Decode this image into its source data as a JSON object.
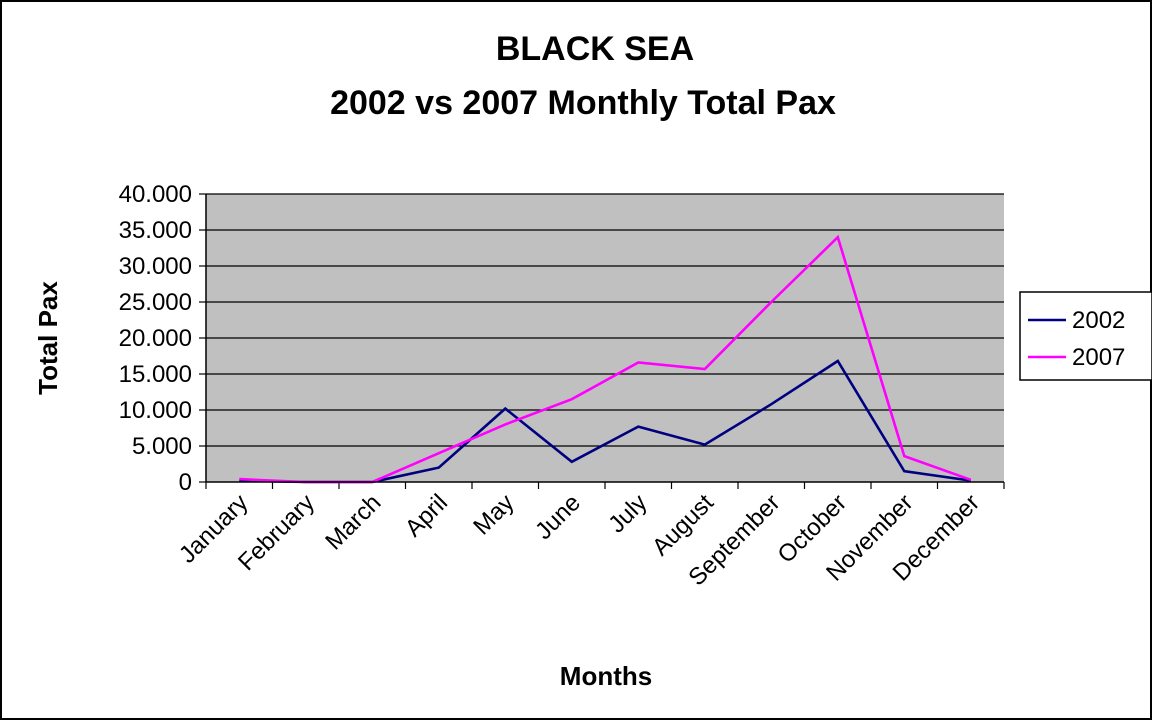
{
  "chart_data": {
    "type": "line",
    "title": "BLACK SEA",
    "subtitle": "2002 vs 2007 Monthly Total Pax",
    "xlabel": "Months",
    "ylabel": "Total Pax",
    "categories": [
      "January",
      "February",
      "March",
      "April",
      "May",
      "June",
      "July",
      "August",
      "September",
      "October",
      "November",
      "December"
    ],
    "ylim": [
      0,
      40000
    ],
    "yticks": [
      0,
      5000,
      10000,
      15000,
      20000,
      25000,
      30000,
      35000,
      40000
    ],
    "ytick_labels": [
      "0",
      "5.000",
      "10.000",
      "15.000",
      "20.000",
      "25.000",
      "30.000",
      "35.000",
      "40.000"
    ],
    "grid": true,
    "legend_position": "right",
    "series": [
      {
        "name": "2002",
        "color": "#000080",
        "values": [
          200,
          0,
          0,
          2000,
          10200,
          2800,
          7700,
          5200,
          10800,
          16800,
          1500,
          200
        ]
      },
      {
        "name": "2007",
        "color": "#ff00ff",
        "values": [
          400,
          0,
          0,
          4000,
          8000,
          11500,
          16600,
          15700,
          25000,
          34000,
          3600,
          300
        ]
      }
    ],
    "colors": {
      "plot_background": "#c0c0c0",
      "gridline": "#000000",
      "frame": "#000000"
    }
  }
}
